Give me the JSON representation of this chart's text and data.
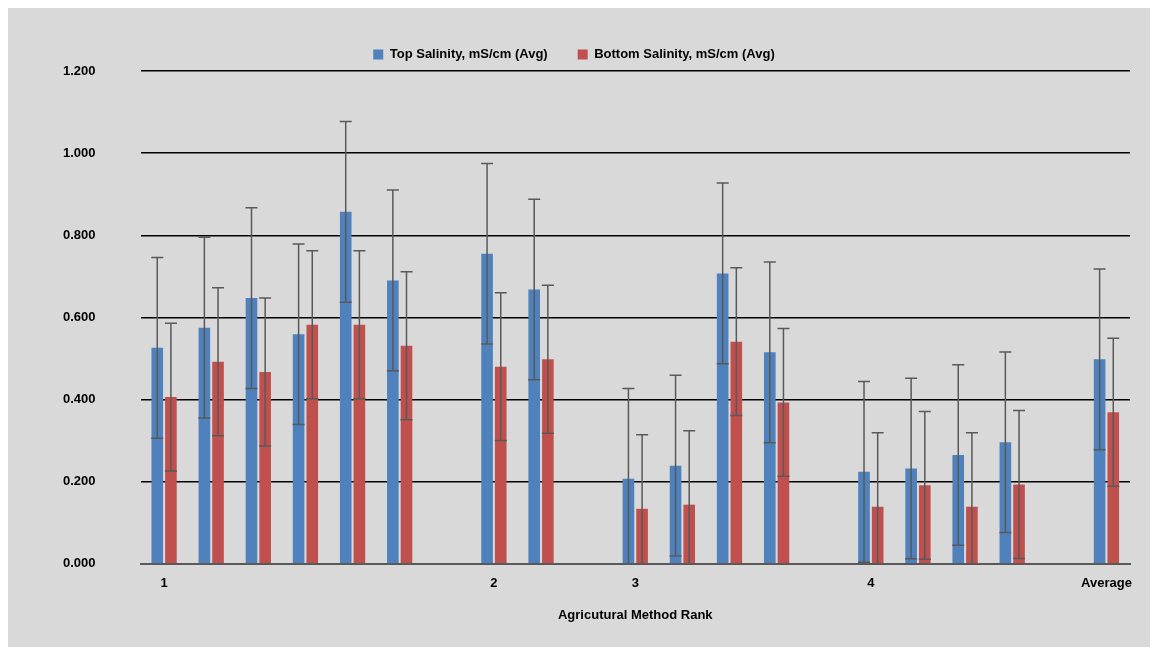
{
  "chart_data": {
    "type": "bar",
    "xlabel": "Agricutural Method Rank",
    "categories": [
      "1",
      null,
      null,
      null,
      null,
      null,
      null,
      "2",
      null,
      null,
      "3",
      null,
      null,
      null,
      null,
      "4",
      null,
      null,
      null,
      null,
      "Average"
    ],
    "series": [
      {
        "name": "Top Salinity, mS/cm (Avg)",
        "color": "#4f81bd",
        "values": [
          0.526,
          0.575,
          0.647,
          0.559,
          0.857,
          0.69,
          null,
          0.755,
          0.668,
          null,
          0.207,
          0.239,
          0.707,
          0.515,
          null,
          0.224,
          0.232,
          0.265,
          0.296,
          null,
          0.498
        ],
        "errors": [
          0.22,
          0.22,
          0.22,
          0.22,
          0.22,
          0.22,
          null,
          0.22,
          0.22,
          null,
          [
            0,
            0.427
          ],
          0.22,
          0.22,
          0.22,
          null,
          0.22,
          0.22,
          0.22,
          0.22,
          null,
          0.22
        ]
      },
      {
        "name": "Bottom Salinity, mS/cm (Avg)",
        "color": "#c0504d",
        "values": [
          0.406,
          0.492,
          0.467,
          0.582,
          0.582,
          0.531,
          null,
          0.48,
          0.498,
          null,
          0.134,
          0.144,
          0.541,
          0.393,
          null,
          0.139,
          0.191,
          0.139,
          0.193,
          null,
          0.369
        ],
        "errors": [
          0.18,
          0.18,
          0.18,
          0.18,
          0.18,
          0.18,
          null,
          0.18,
          0.18,
          null,
          [
            0,
            0.314
          ],
          [
            0,
            0.324
          ],
          0.18,
          0.18,
          null,
          [
            0,
            0.319
          ],
          0.18,
          [
            0,
            0.319
          ],
          0.18,
          null,
          0.18
        ]
      }
    ],
    "ylim": [
      0,
      1.2
    ],
    "yticks": [
      {
        "value": 0,
        "label": "0.000"
      },
      {
        "value": 0.2,
        "label": "0.200"
      },
      {
        "value": 0.4,
        "label": "0.400"
      },
      {
        "value": 0.6,
        "label": "0.600"
      },
      {
        "value": 0.8,
        "label": "0.800"
      },
      {
        "value": 1.0,
        "label": "1.000"
      },
      {
        "value": 1.2,
        "label": "1.200"
      }
    ],
    "grid": "y",
    "legend": "top"
  }
}
